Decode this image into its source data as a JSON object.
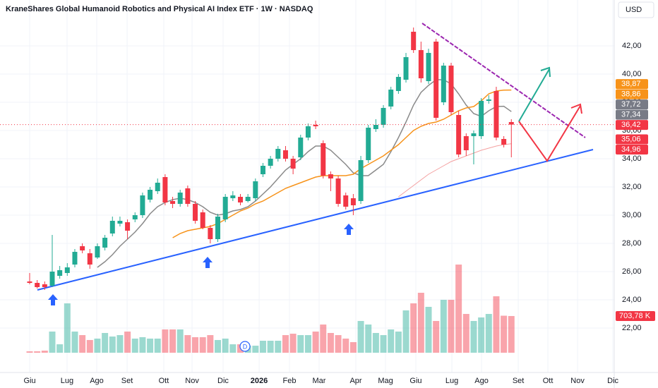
{
  "chart_data": {
    "type": "candlestick",
    "title": "KraneShares Global Humanoid Robotics and Physical AI Index ETF · 1W · NASDAQ",
    "currency": "USD",
    "dividend_marker": "D",
    "up_color": "#22ab94",
    "down_color": "#f23645",
    "grid": true,
    "xlim": [
      -3.94,
      77.67
    ],
    "xticks": [
      {
        "value": 0,
        "label": "Giu"
      },
      {
        "value": 4.97,
        "label": "Lug"
      },
      {
        "value": 8.91,
        "label": "Ago"
      },
      {
        "value": 12.95,
        "label": "Set"
      },
      {
        "value": 17.82,
        "label": "Ott"
      },
      {
        "value": 21.58,
        "label": "Nov"
      },
      {
        "value": 25.7,
        "label": "Dic"
      },
      {
        "value": 30.49,
        "label": "2026"
      },
      {
        "value": 34.52,
        "label": "Feb"
      },
      {
        "value": 38.46,
        "label": "Mar"
      },
      {
        "value": 43.34,
        "label": "Apr"
      },
      {
        "value": 47.28,
        "label": "Mag"
      },
      {
        "value": 51.31,
        "label": "Giu"
      },
      {
        "value": 56.1,
        "label": "Lug"
      },
      {
        "value": 60.04,
        "label": "Ago"
      },
      {
        "value": 64.92,
        "label": "Set"
      },
      {
        "value": 68.86,
        "label": "Ott"
      },
      {
        "value": 72.8,
        "label": "Nov"
      },
      {
        "value": 77.49,
        "label": "Dic"
      }
    ],
    "ylim": [
      18.85,
      45.25
    ],
    "yticks": [
      {
        "value": 22,
        "label": "22,00"
      },
      {
        "value": 24,
        "label": "24,00"
      },
      {
        "value": 26,
        "label": "26,00"
      },
      {
        "value": 28,
        "label": "28,00"
      },
      {
        "value": 30,
        "label": "30,00"
      },
      {
        "value": 32,
        "label": "32,00"
      },
      {
        "value": 34,
        "label": "34,00"
      },
      {
        "value": 36,
        "label": "36,00"
      },
      {
        "value": 38,
        "label": "38,00"
      },
      {
        "value": 40,
        "label": "40,00"
      },
      {
        "value": 42,
        "label": "42,00"
      }
    ],
    "y2lim": [
      0,
      6765
    ],
    "open": [
      25.3,
      25.2,
      25.1,
      25.0,
      25.7,
      25.9,
      26.5,
      27.8,
      27.3,
      27.0,
      27.7,
      28.7,
      29.4,
      29.5,
      29.7,
      30.0,
      31.1,
      31.7,
      32.7,
      31.0,
      30.8,
      31.9,
      30.8,
      30.2,
      29.1,
      28.3,
      29.7,
      31.2,
      31.3,
      31.0,
      31.2,
      32.9,
      33.5,
      34.0,
      34.6,
      34.0,
      34.1,
      35.5,
      36.4,
      35.1,
      32.9,
      32.6,
      31.4,
      31.2,
      31.0,
      33.9,
      36.1,
      36.4,
      37.7,
      38.8,
      39.6,
      43.0,
      41.7,
      39.5,
      42.3,
      38.0,
      40.6,
      37.1,
      35.6,
      35.6,
      35.6,
      38.1,
      38.8,
      35.4,
      36.6
    ],
    "high": [
      25.9,
      25.4,
      25.3,
      28.6,
      26.4,
      26.6,
      27.6,
      28.0,
      27.6,
      28.0,
      28.6,
      29.9,
      29.9,
      29.7,
      30.2,
      31.6,
      32.0,
      32.6,
      32.9,
      31.3,
      31.8,
      32.1,
      31.0,
      30.4,
      29.3,
      30.1,
      31.5,
      31.7,
      31.5,
      31.5,
      32.6,
      33.7,
      34.2,
      34.9,
      34.9,
      34.2,
      35.7,
      36.5,
      36.7,
      35.3,
      33.1,
      32.8,
      31.6,
      31.5,
      34.2,
      36.4,
      36.8,
      37.8,
      39.1,
      40.0,
      41.5,
      43.3,
      42.3,
      41.8,
      42.5,
      40.8,
      40.8,
      37.4,
      35.8,
      36.0,
      38.3,
      38.5,
      39.1,
      35.6,
      36.8
    ],
    "low": [
      25.1,
      24.8,
      24.7,
      24.9,
      25.5,
      25.7,
      26.3,
      27.3,
      26.2,
      26.9,
      27.5,
      28.5,
      29.2,
      28.3,
      29.5,
      29.8,
      30.9,
      31.5,
      30.7,
      30.5,
      30.6,
      30.6,
      29.4,
      29.0,
      28.0,
      28.1,
      29.5,
      31.0,
      30.7,
      30.9,
      31.0,
      32.7,
      33.3,
      33.8,
      33.8,
      32.9,
      33.9,
      35.3,
      36.1,
      32.6,
      31.7,
      30.6,
      30.4,
      30.0,
      30.8,
      33.7,
      35.9,
      36.2,
      37.5,
      38.6,
      39.4,
      41.5,
      39.4,
      39.3,
      36.7,
      37.8,
      37.1,
      34.1,
      34.2,
      33.6,
      35.4,
      37.9,
      35.3,
      34.8,
      34.1
    ],
    "close": [
      25.2,
      24.9,
      24.9,
      26.0,
      26.1,
      26.3,
      27.4,
      27.5,
      26.5,
      27.8,
      28.4,
      29.6,
      29.6,
      28.9,
      30.0,
      31.4,
      31.8,
      32.3,
      30.9,
      30.8,
      31.6,
      30.8,
      29.6,
      29.1,
      28.3,
      29.9,
      31.3,
      31.4,
      30.9,
      31.3,
      32.4,
      33.5,
      34.0,
      34.7,
      34.0,
      33.3,
      35.5,
      36.3,
      36.3,
      32.8,
      32.6,
      30.8,
      30.6,
      30.7,
      33.9,
      36.2,
      36.4,
      37.6,
      38.9,
      39.8,
      41.2,
      41.7,
      39.7,
      41.5,
      36.9,
      40.6,
      37.3,
      34.3,
      34.6,
      35.8,
      38.1,
      38.2,
      35.5,
      35.0,
      36.42
    ],
    "volume": {
      "values": [
        27,
        27,
        40,
        406,
        162,
        947,
        406,
        338,
        244,
        271,
        379,
        311,
        338,
        406,
        271,
        298,
        271,
        271,
        447,
        447,
        447,
        338,
        298,
        298,
        338,
        244,
        271,
        162,
        162,
        135,
        135,
        230,
        230,
        230,
        338,
        365,
        338,
        338,
        406,
        541,
        379,
        338,
        271,
        203,
        609,
        541,
        379,
        338,
        447,
        406,
        812,
        947,
        1150,
        880,
        609,
        1015,
        1015,
        1691,
        744,
        609,
        677,
        744,
        1083,
        710,
        703.78
      ],
      "value_labels": [
        null,
        null,
        null,
        null,
        null,
        null,
        null,
        null,
        null,
        null,
        null,
        null,
        null,
        null,
        null,
        null,
        null,
        null,
        null,
        null,
        null,
        null,
        null,
        null,
        null,
        null,
        null,
        null,
        null,
        null,
        null,
        null,
        null,
        null,
        null,
        null,
        null,
        null,
        null,
        null,
        null,
        null,
        null,
        null,
        null,
        null,
        null,
        null,
        null,
        null,
        null,
        null,
        null,
        null,
        null,
        null,
        null,
        null,
        null,
        null,
        null,
        null,
        null,
        null,
        "703,78 K"
      ]
    },
    "series": [
      {
        "color": "#8a8a8a",
        "values": [
          null,
          null,
          null,
          null,
          null,
          null,
          null,
          null,
          null,
          26.3,
          26.7,
          27.2,
          27.8,
          28.3,
          28.8,
          29.4,
          30.1,
          30.6,
          30.9,
          31.1,
          31.2,
          31.1,
          30.9,
          30.6,
          30.2,
          30.0,
          30.1,
          30.3,
          30.4,
          30.6,
          31.0,
          31.5,
          32.0,
          32.6,
          33.2,
          33.6,
          34.0,
          34.5,
          34.9,
          34.9,
          34.6,
          34.1,
          33.6,
          33.0,
          32.8,
          32.8,
          33.2,
          33.6,
          34.5,
          35.5,
          36.6,
          37.8,
          38.7,
          39.2,
          39.6,
          39.6,
          39.3,
          38.6,
          37.8,
          37.2,
          37.0,
          37.4,
          37.7,
          37.72,
          37.34
        ]
      },
      {
        "color": "#f7931a",
        "values": [
          null,
          null,
          null,
          null,
          null,
          null,
          null,
          null,
          null,
          null,
          null,
          null,
          null,
          null,
          null,
          null,
          null,
          null,
          null,
          28.4,
          28.7,
          28.9,
          29.0,
          29.1,
          29.2,
          29.4,
          29.7,
          30.0,
          30.3,
          30.5,
          30.8,
          31.0,
          31.3,
          31.6,
          31.9,
          32.1,
          32.3,
          32.5,
          32.7,
          32.8,
          32.8,
          32.8,
          32.8,
          32.9,
          33.3,
          33.6,
          33.9,
          34.2,
          34.6,
          35.0,
          35.5,
          36.0,
          36.3,
          36.5,
          36.6,
          36.8,
          37.1,
          37.4,
          37.6,
          37.7,
          38.1,
          38.6,
          38.8,
          38.86,
          38.87
        ]
      },
      {
        "color": "#f4a0a0",
        "values": [
          null,
          null,
          null,
          null,
          null,
          null,
          null,
          null,
          null,
          null,
          null,
          null,
          null,
          null,
          null,
          null,
          null,
          null,
          null,
          null,
          null,
          null,
          null,
          null,
          null,
          null,
          null,
          null,
          null,
          null,
          null,
          null,
          null,
          null,
          null,
          null,
          null,
          null,
          null,
          null,
          null,
          null,
          null,
          null,
          null,
          null,
          null,
          null,
          null,
          31.3,
          31.7,
          32.1,
          32.5,
          32.9,
          33.2,
          33.5,
          33.8,
          34.0,
          34.2,
          34.4,
          34.6,
          34.75,
          34.9,
          35.0,
          35.06
        ]
      }
    ],
    "price_labels": [
      {
        "value": 38.87,
        "label": "38,87",
        "color": "#f7931a"
      },
      {
        "value": 38.86,
        "label": "38,86",
        "color": "#f7931a"
      },
      {
        "value": 37.72,
        "label": "37,72",
        "color": "#787b86"
      },
      {
        "value": 37.34,
        "label": "37,34",
        "color": "#787b86"
      },
      {
        "value": 36.42,
        "label": "36,42",
        "color": "#f23645",
        "dotted": true
      },
      {
        "value": 35.06,
        "label": "35,06",
        "color": "#f23645"
      },
      {
        "value": 34.96,
        "label": "34,96",
        "color": "#f23645"
      }
    ]
  }
}
